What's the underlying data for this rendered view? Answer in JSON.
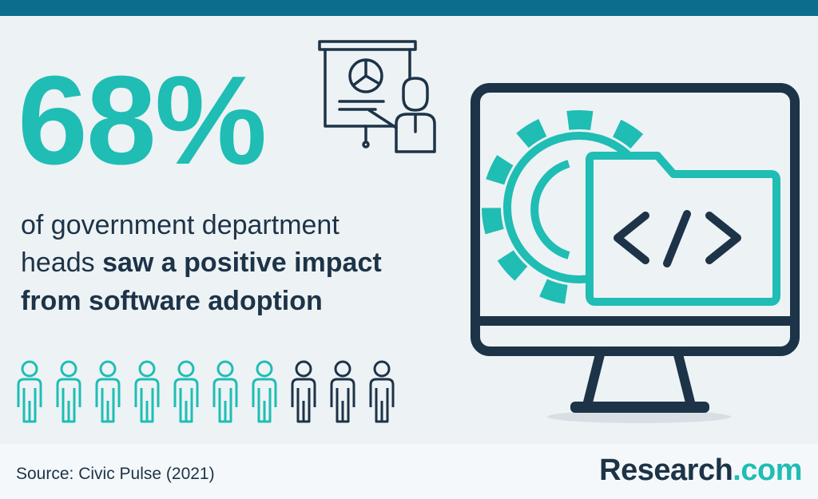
{
  "headline": {
    "stat": "68%",
    "line1": "of government department",
    "line2": "heads",
    "line2_bold": "saw a positive impact",
    "line3_bold": "from software adoption"
  },
  "footer": {
    "source": "Source: Civic Pulse (2021)",
    "brand": "Research",
    "brand_suffix": ".com"
  }
}
